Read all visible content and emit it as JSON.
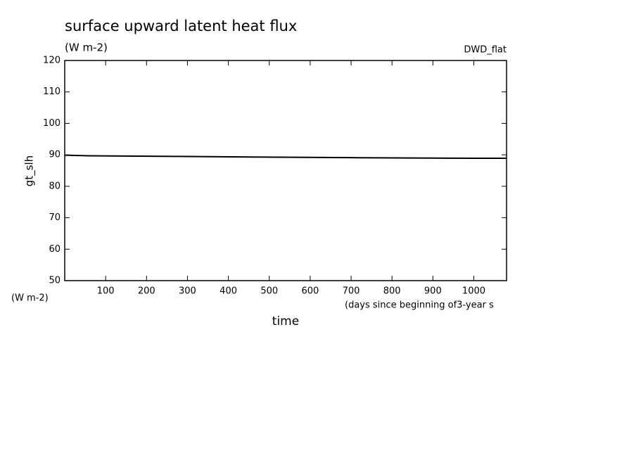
{
  "chart_data": {
    "type": "line",
    "title": "surface upward latent heat flux",
    "subtitle": "(W m-2)",
    "annotation": "DWD_flat",
    "y_label": "gt_slh",
    "y_units": "(W m-2)",
    "x_label": "time",
    "x_units": "(days since beginning of3-year s",
    "x": [
      0,
      60,
      270,
      460,
      700,
      1000,
      1080
    ],
    "values": [
      89.9,
      89.7,
      89.5,
      89.3,
      89.1,
      88.9,
      88.9
    ],
    "color": "#000000",
    "xlim": [
      0,
      1080
    ],
    "xticks": [
      100,
      200,
      300,
      400,
      500,
      600,
      700,
      800,
      900,
      1000
    ],
    "ylim": [
      50,
      120
    ],
    "yticks": [
      50,
      60,
      70,
      80,
      90,
      100,
      110,
      120
    ]
  }
}
